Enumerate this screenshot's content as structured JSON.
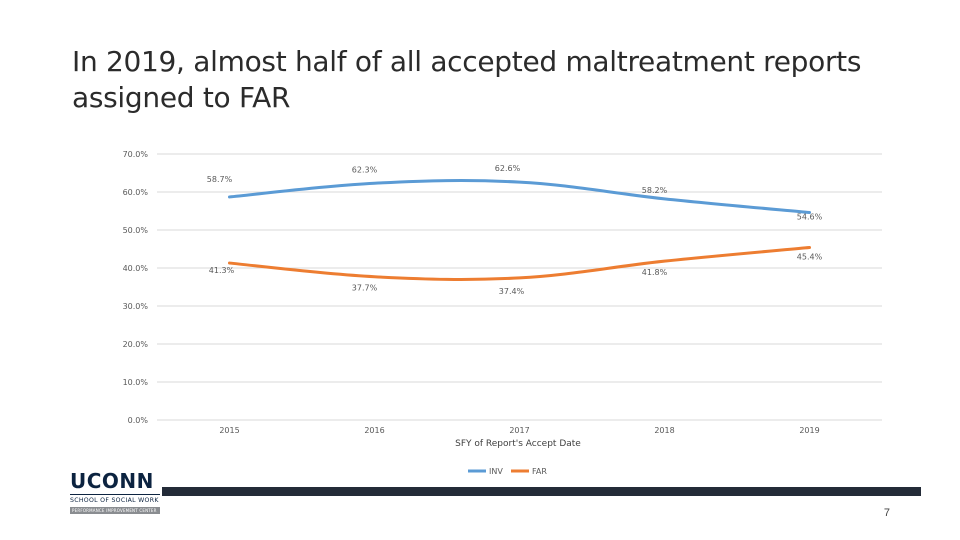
{
  "slide": {
    "title_line1": "In 2019, almost half of all accepted maltreatment reports",
    "title_line2": "assigned to FAR",
    "page_number": "7",
    "footer_bar_color": "#232b38"
  },
  "logo": {
    "wordmark": "UCONN",
    "subtitle": "SCHOOL OF SOCIAL WORK",
    "tagline": "PERFORMANCE IMPROVEMENT CENTER"
  },
  "chart_data": {
    "type": "line",
    "title": "",
    "xlabel": "SFY of Report's Accept Date",
    "ylabel": "",
    "categories": [
      "2015",
      "2016",
      "2017",
      "2018",
      "2019"
    ],
    "y_ticks": [
      "70.0%",
      "60.0%",
      "50.0%",
      "40.0%",
      "30.0%",
      "20.0%",
      "10.0%",
      "0.0%"
    ],
    "ylim": [
      0,
      70
    ],
    "grid": true,
    "legend_position": "bottom",
    "series": [
      {
        "name": "INV",
        "color": "#5b9bd5",
        "values": [
          58.7,
          62.3,
          62.6,
          58.2,
          54.6
        ],
        "labels": [
          "58.7%",
          "62.3%",
          "62.6%",
          "58.2%",
          "54.6%"
        ]
      },
      {
        "name": "FAR",
        "color": "#ed7d31",
        "values": [
          41.3,
          37.7,
          37.4,
          41.8,
          45.4
        ],
        "labels": [
          "41.3%",
          "37.7%",
          "37.4%",
          "41.8%",
          "45.4%"
        ]
      }
    ]
  }
}
